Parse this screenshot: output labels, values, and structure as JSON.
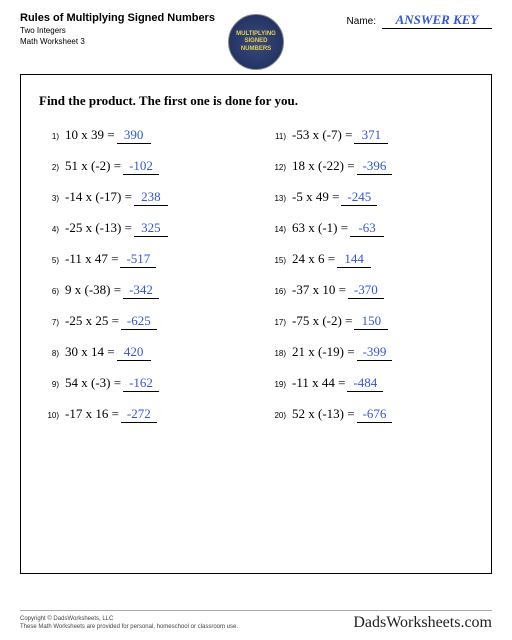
{
  "header": {
    "title": "Rules of Multiplying Signed Numbers",
    "subtitle1": "Two Integers",
    "subtitle2": "Math Worksheet 3",
    "name_label": "Name:",
    "answer_key": "ANSWER KEY"
  },
  "badge": {
    "line1": "MULTIPLYING",
    "line2": "SIGNED",
    "line3": "NUMBERS"
  },
  "instructions": "Find the product.  The first one is done for you.",
  "problems": [
    {
      "n": "1)",
      "expr": "10 x 39 =",
      "ans": "390"
    },
    {
      "n": "11)",
      "expr": "-53 x (-7) =",
      "ans": "371"
    },
    {
      "n": "2)",
      "expr": "51 x (-2) =",
      "ans": "-102"
    },
    {
      "n": "12)",
      "expr": "18 x (-22) =",
      "ans": "-396"
    },
    {
      "n": "3)",
      "expr": "-14 x (-17) =",
      "ans": "238"
    },
    {
      "n": "13)",
      "expr": "-5 x 49 =",
      "ans": "-245"
    },
    {
      "n": "4)",
      "expr": "-25 x (-13) =",
      "ans": "325"
    },
    {
      "n": "14)",
      "expr": "63 x (-1) =",
      "ans": "-63"
    },
    {
      "n": "5)",
      "expr": "-11 x 47 =",
      "ans": "-517"
    },
    {
      "n": "15)",
      "expr": "24 x 6 =",
      "ans": "144"
    },
    {
      "n": "6)",
      "expr": "9 x (-38) =",
      "ans": "-342"
    },
    {
      "n": "16)",
      "expr": "-37 x 10 =",
      "ans": "-370"
    },
    {
      "n": "7)",
      "expr": "-25 x 25 =",
      "ans": "-625"
    },
    {
      "n": "17)",
      "expr": "-75 x (-2) =",
      "ans": "150"
    },
    {
      "n": "8)",
      "expr": "30 x 14 =",
      "ans": "420"
    },
    {
      "n": "18)",
      "expr": "21 x (-19) =",
      "ans": "-399"
    },
    {
      "n": "9)",
      "expr": "54 x (-3) =",
      "ans": "-162"
    },
    {
      "n": "19)",
      "expr": "-11 x 44 =",
      "ans": "-484"
    },
    {
      "n": "10)",
      "expr": "-17 x 16 =",
      "ans": "-272"
    },
    {
      "n": "20)",
      "expr": "52 x (-13) =",
      "ans": "-676"
    }
  ],
  "footer": {
    "copyright": "Copyright © DadsWorksheets, LLC",
    "note": "These Math Worksheets are provided for personal, homeschool or classroom use.",
    "brand": "DadsWorksheets.com"
  },
  "colors": {
    "answer_blue": "#3355dd",
    "badge_bg": "#1a2a5a",
    "badge_text": "#e8d050"
  }
}
